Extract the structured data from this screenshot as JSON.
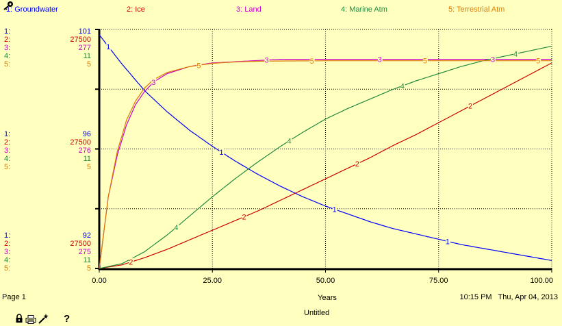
{
  "page_label": "Page 1",
  "timestamp": "10:15 PM   Thu, Apr 04, 2013",
  "document_title": "Untitled",
  "help_label": "?",
  "icons": [
    "key-icon",
    "lock-icon",
    "print-icon",
    "magic-wand-icon",
    "help-icon"
  ],
  "colors": {
    "background": "#ffffc0",
    "plot_area": "#ffffc0",
    "groundwater": "#0000ff",
    "ice": "#cc0000",
    "land": "#cc00cc",
    "marine_atm": "#228b3c",
    "terrestrial_atm": "#dd7a00"
  },
  "chart_data": {
    "type": "line",
    "title": "",
    "xlabel": "Years",
    "xlim": [
      0,
      100
    ],
    "x_ticks": [
      "0.00",
      "25.00",
      "50.00",
      "75.00",
      "100.00"
    ],
    "grid": true,
    "legend_placement": "top",
    "series": [
      {
        "id": 1,
        "name": "1: Groundwater",
        "color": "#0000ff",
        "scale": {
          "top": "101",
          "mid": "96",
          "bottom": "92"
        },
        "ylim": [
          92,
          101
        ],
        "x": [
          0,
          5,
          10,
          15,
          20,
          25,
          30,
          35,
          40,
          45,
          50,
          55,
          60,
          65,
          70,
          75,
          80,
          85,
          90,
          95,
          100
        ],
        "values": [
          100.8,
          99.7,
          98.7,
          97.9,
          97.2,
          96.6,
          96.05,
          95.55,
          95.1,
          94.7,
          94.35,
          94.05,
          93.75,
          93.5,
          93.3,
          93.1,
          92.9,
          92.75,
          92.6,
          92.45,
          92.3
        ]
      },
      {
        "id": 2,
        "name": "2: Ice",
        "color": "#cc0000",
        "scale": {
          "top": "27500",
          "mid": "27500",
          "bottom": "27500"
        },
        "ylim": [
          0,
          1
        ],
        "x": [
          0,
          5,
          10,
          15,
          20,
          25,
          30,
          35,
          40,
          45,
          50,
          55,
          60,
          65,
          70,
          75,
          80,
          85,
          90,
          95,
          100
        ],
        "values": [
          0,
          0.015,
          0.045,
          0.08,
          0.12,
          0.16,
          0.2,
          0.24,
          0.285,
          0.33,
          0.375,
          0.42,
          0.465,
          0.515,
          0.56,
          0.61,
          0.66,
          0.71,
          0.76,
          0.81,
          0.86
        ]
      },
      {
        "id": 3,
        "name": "3: Land",
        "color": "#cc00cc",
        "scale": {
          "top": "277",
          "mid": "276",
          "bottom": "275"
        },
        "ylim": [
          275,
          277
        ],
        "x": [
          0,
          2,
          4,
          6,
          8,
          10,
          12,
          15,
          20,
          25,
          30,
          35,
          40,
          50,
          60,
          70,
          80,
          90,
          100
        ],
        "values": [
          275.0,
          275.6,
          275.95,
          276.2,
          276.37,
          276.48,
          276.56,
          276.63,
          276.69,
          276.72,
          276.73,
          276.74,
          276.75,
          276.75,
          276.75,
          276.75,
          276.75,
          276.75,
          276.75
        ]
      },
      {
        "id": 4,
        "name": "4: Marine Atm",
        "color": "#228b3c",
        "scale": {
          "top": "11",
          "mid": "11",
          "bottom": "11"
        },
        "ylim": [
          0,
          1
        ],
        "x": [
          0,
          5,
          10,
          15,
          20,
          25,
          30,
          35,
          40,
          45,
          50,
          55,
          60,
          65,
          70,
          75,
          80,
          85,
          90,
          95,
          100
        ],
        "values": [
          0,
          0.02,
          0.07,
          0.14,
          0.22,
          0.3,
          0.375,
          0.445,
          0.51,
          0.57,
          0.625,
          0.67,
          0.71,
          0.75,
          0.785,
          0.815,
          0.845,
          0.87,
          0.89,
          0.91,
          0.93
        ]
      },
      {
        "id": 5,
        "name": "5: Terrestrial Atm",
        "color": "#dd7a00",
        "scale": {
          "top": "5",
          "mid": "5",
          "bottom": "5"
        },
        "ylim": [
          0,
          1
        ],
        "x": [
          0,
          2,
          4,
          6,
          8,
          10,
          12,
          15,
          20,
          25,
          30,
          35,
          40,
          50,
          60,
          70,
          80,
          90,
          100
        ],
        "values": [
          0,
          0.3,
          0.49,
          0.62,
          0.7,
          0.755,
          0.79,
          0.82,
          0.845,
          0.858,
          0.864,
          0.867,
          0.868,
          0.869,
          0.869,
          0.869,
          0.869,
          0.869,
          0.869
        ]
      }
    ],
    "point_labels": [
      {
        "series": 1,
        "x": [
          2,
          27,
          52,
          77
        ]
      },
      {
        "series": 2,
        "x": [
          7,
          32,
          57,
          82
        ]
      },
      {
        "series": 3,
        "x": [
          12,
          37,
          62,
          87
        ]
      },
      {
        "series": 4,
        "x": [
          17,
          42,
          67,
          92
        ]
      },
      {
        "series": 5,
        "x": [
          22,
          47,
          72,
          97
        ]
      }
    ]
  }
}
